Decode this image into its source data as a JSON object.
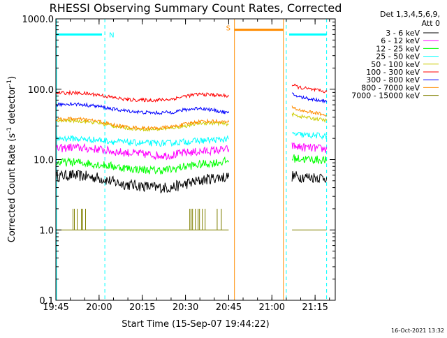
{
  "chart_data": {
    "type": "line",
    "title": "RHESSI Observing Summary Count Rates, Corrected",
    "xlabel": "Start Time (15-Sep-07 19:44:22)",
    "ylabel_main": "Corrected Count Rate (s",
    "ylabel_sup1": "-1",
    "ylabel_mid": " detector",
    "ylabel_sup2": "-1",
    "ylabel_end": ")",
    "yscale": "log",
    "ylim": [
      0.1,
      1000
    ],
    "xlim": [
      "19:45",
      "21:22"
    ],
    "x_tick_labels": [
      "19:45",
      "20:00",
      "20:15",
      "20:30",
      "20:45",
      "21:00",
      "21:15"
    ],
    "y_tick_labels": [
      "0.1",
      "1.0",
      "10.0",
      "100.0",
      "1000.0"
    ],
    "legend_header": [
      "Det 1,3,4,5,6,9,",
      "Att 0"
    ],
    "legend_position": "right",
    "footer": "16-Oct-2021 13:32",
    "annotations": [
      {
        "text": "N",
        "color": "#00ffff"
      },
      {
        "text": "S",
        "color": "#ff8c00"
      }
    ],
    "series": [
      {
        "name": "3 - 6 keV",
        "color": "#000000",
        "segments": [
          {
            "x": [
              "19:45",
              "19:50",
              "19:55",
              "20:00",
              "20:05",
              "20:10",
              "20:15",
              "20:20",
              "20:25",
              "20:30",
              "20:35",
              "20:40",
              "20:45"
            ],
            "y": [
              5.8,
              6.0,
              5.8,
              5.5,
              4.8,
              4.4,
              4.2,
              4.0,
              4.0,
              4.5,
              5.0,
              5.5,
              5.7
            ]
          },
          {
            "x": [
              "21:07",
              "21:10",
              "21:15",
              "21:19"
            ],
            "y": [
              5.8,
              5.7,
              5.6,
              5.6
            ]
          }
        ]
      },
      {
        "name": "6 - 12 keV",
        "color": "#ff00ff",
        "segments": [
          {
            "x": [
              "19:45",
              "19:50",
              "19:55",
              "20:00",
              "20:05",
              "20:10",
              "20:15",
              "20:20",
              "20:25",
              "20:30",
              "20:35",
              "20:40",
              "20:45"
            ],
            "y": [
              14,
              15,
              14.5,
              14,
              13,
              12.5,
              12,
              11.5,
              11.5,
              12.5,
              13,
              13.5,
              14
            ]
          },
          {
            "x": [
              "21:07",
              "21:10",
              "21:15",
              "21:19"
            ],
            "y": [
              15.5,
              15,
              14.5,
              14
            ]
          }
        ]
      },
      {
        "name": "12 - 25 keV",
        "color": "#00ff00",
        "segments": [
          {
            "x": [
              "19:45",
              "19:50",
              "19:55",
              "20:00",
              "20:05",
              "20:10",
              "20:15",
              "20:20",
              "20:25",
              "20:30",
              "20:35",
              "20:40",
              "20:45"
            ],
            "y": [
              9,
              9.2,
              9,
              8.5,
              8,
              7.5,
              7.2,
              7,
              7.2,
              8,
              8.5,
              9,
              9.5
            ]
          },
          {
            "x": [
              "21:07",
              "21:10",
              "21:15",
              "21:19"
            ],
            "y": [
              10.5,
              10.2,
              10,
              9.8
            ]
          }
        ]
      },
      {
        "name": "25 - 50 keV",
        "color": "#00ffff",
        "segments": [
          {
            "x": [
              "19:45",
              "19:50",
              "19:55",
              "20:00",
              "20:05",
              "20:10",
              "20:15",
              "20:20",
              "20:25",
              "20:30",
              "20:35",
              "20:40",
              "20:45"
            ],
            "y": [
              20,
              20,
              19.5,
              19,
              18,
              17.5,
              17.2,
              17,
              17.2,
              18,
              18.5,
              19,
              19.5
            ]
          },
          {
            "x": [
              "21:07",
              "21:10",
              "21:15",
              "21:19"
            ],
            "y": [
              23,
              22.5,
              22,
              21.5
            ]
          }
        ]
      },
      {
        "name": "50 - 100 keV",
        "color": "#cccc00",
        "segments": [
          {
            "x": [
              "19:45",
              "19:50",
              "19:55",
              "20:00",
              "20:05",
              "20:10",
              "20:15",
              "20:20",
              "20:25",
              "20:30",
              "20:35",
              "20:40",
              "20:45"
            ],
            "y": [
              35,
              36,
              35,
              33,
              30,
              28,
              27,
              27,
              28,
              30,
              33,
              33,
              32
            ]
          },
          {
            "x": [
              "21:07",
              "21:10",
              "21:15",
              "21:19"
            ],
            "y": [
              44,
              41,
              38,
              36
            ]
          }
        ]
      },
      {
        "name": "100 - 300 keV",
        "color": "#ff0000",
        "segments": [
          {
            "x": [
              "19:45",
              "19:50",
              "19:55",
              "20:00",
              "20:05",
              "20:10",
              "20:15",
              "20:20",
              "20:25",
              "20:30",
              "20:35",
              "20:40",
              "20:45"
            ],
            "y": [
              88,
              89,
              87,
              83,
              76,
              71,
              70,
              70,
              72,
              80,
              85,
              83,
              80
            ]
          },
          {
            "x": [
              "21:07",
              "21:10",
              "21:15",
              "21:19"
            ],
            "y": [
              115,
              105,
              97,
              92
            ]
          }
        ]
      },
      {
        "name": "300 - 800 keV",
        "color": "#0000ff",
        "segments": [
          {
            "x": [
              "19:45",
              "19:50",
              "19:55",
              "20:00",
              "20:05",
              "20:10",
              "20:15",
              "20:20",
              "20:25",
              "20:30",
              "20:35",
              "20:40",
              "20:45"
            ],
            "y": [
              60,
              62,
              60,
              57,
              52,
              49,
              47,
              46,
              47,
              51,
              54,
              50,
              46
            ]
          },
          {
            "x": [
              "21:07",
              "21:10",
              "21:15",
              "21:19"
            ],
            "y": [
              85,
              77,
              71,
              68
            ]
          }
        ]
      },
      {
        "name": "800 - 7000 keV",
        "color": "#ff8c00",
        "segments": [
          {
            "x": [
              "19:45",
              "19:50",
              "19:55",
              "20:00",
              "20:05",
              "20:10",
              "20:15",
              "20:20",
              "20:25",
              "20:30",
              "20:35",
              "20:40",
              "20:45"
            ],
            "y": [
              37,
              38,
              37,
              35,
              31,
              29,
              28,
              28,
              29,
              32,
              35,
              35,
              34
            ]
          },
          {
            "x": [
              "20:47",
              "21:04"
            ],
            "y": [
              700,
              700
            ]
          },
          {
            "x": [
              "21:07",
              "21:10",
              "21:15",
              "21:19"
            ],
            "y": [
              55,
              50,
              46,
              43
            ]
          }
        ]
      },
      {
        "name": "7000 - 15000 keV",
        "color": "#808000",
        "segments": [
          {
            "x": [
              "19:45",
              "20:45"
            ],
            "y": [
              1.0,
              1.0
            ]
          },
          {
            "x": [
              "21:07",
              "21:19"
            ],
            "y": [
              1.0,
              1.0
            ]
          }
        ]
      }
    ],
    "bursts_7000": [
      {
        "x": [
          "19:49",
          "19:56"
        ],
        "y": 2.0
      },
      {
        "x": [
          "20:31",
          "20:37"
        ],
        "y": 2.0
      },
      {
        "x": [
          "20:41",
          "20:43"
        ],
        "y": 2.0
      }
    ],
    "cyan_bars": [
      {
        "x": [
          "19:45",
          "20:01"
        ],
        "y": 600
      },
      {
        "x": [
          "21:06",
          "21:19"
        ],
        "y": 600
      }
    ],
    "cyan_dashed_x": [
      "20:02",
      "21:05",
      "21:19"
    ],
    "orange_solid_x": [
      "20:47",
      "21:04"
    ]
  }
}
